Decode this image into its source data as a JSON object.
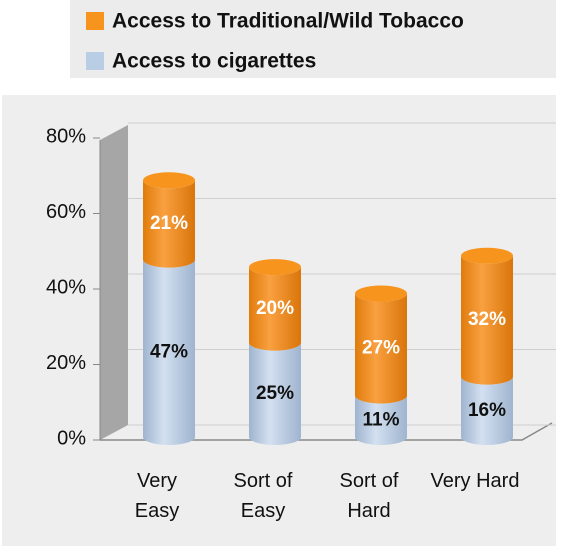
{
  "chart_data": {
    "type": "bar",
    "stacked": true,
    "categories": [
      "Very Easy",
      "Sort of Easy",
      "Sort of Hard",
      "Very Hard"
    ],
    "series": [
      {
        "name": "Access to cigarettes",
        "color": "#b9cde5",
        "values": [
          47,
          25,
          11,
          16
        ],
        "value_labels": [
          "47%",
          "25%",
          "11%",
          "16%"
        ]
      },
      {
        "name": "Access to Traditional/Wild Tobacco",
        "color": "#f7941d",
        "values": [
          21,
          20,
          27,
          32
        ],
        "value_labels": [
          "21%",
          "20%",
          "27%",
          "32%"
        ]
      }
    ],
    "ylim": [
      0,
      80
    ],
    "yticks": [
      {
        "value": 0,
        "label": "0%"
      },
      {
        "value": 20,
        "label": "20%"
      },
      {
        "value": 40,
        "label": "40%"
      },
      {
        "value": 60,
        "label": "60%"
      },
      {
        "value": 80,
        "label": "80%"
      }
    ],
    "grid": true,
    "legend": "top"
  }
}
